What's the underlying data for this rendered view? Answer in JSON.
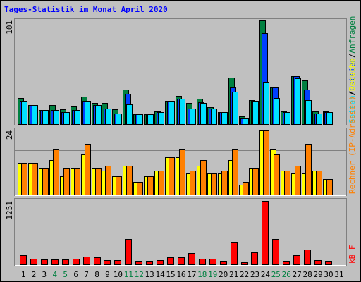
{
  "chart_data": {
    "title": "Tages-Statistik im Monat April 2020",
    "categories": [
      "1",
      "2",
      "3",
      "4",
      "5",
      "6",
      "7",
      "8",
      "9",
      "10",
      "11",
      "12",
      "13",
      "14",
      "15",
      "16",
      "17",
      "18",
      "19",
      "20",
      "21",
      "22",
      "23",
      "24",
      "25",
      "26",
      "27",
      "28",
      "29",
      "30",
      "31"
    ],
    "category_colors": [
      "#000000",
      "#000000",
      "#000000",
      "#008040",
      "#008040",
      "#000000",
      "#000000",
      "#000000",
      "#000000",
      "#000000",
      "#008040",
      "#008040",
      "#000000",
      "#000000",
      "#000000",
      "#000000",
      "#000000",
      "#008040",
      "#008040",
      "#000000",
      "#000000",
      "#000000",
      "#000000",
      "#000000",
      "#008040",
      "#008040",
      "#000000",
      "#000000",
      "#000000",
      "#000000",
      "#000000"
    ],
    "legend_separator": "/",
    "panels": [
      {
        "type": "bar",
        "ylim": [
          0,
          103
        ],
        "yticks": [
          101
        ],
        "series": [
          {
            "name": "Anfragen",
            "color": "#008040",
            "values": [
              26,
              19,
              14,
              19,
              15,
              18,
              27,
              21,
              21,
              15,
              34,
              10,
              10,
              13,
              23,
              28,
              21,
              25,
              17,
              12,
              46,
              8,
              24,
              101,
              36,
              13,
              47,
              43,
              13,
              13,
              null
            ]
          },
          {
            "name": "Dateien",
            "color": "#0040ff",
            "values": [
              23,
              19,
              14,
              14,
              12,
              14,
              23,
              19,
              16,
              11,
              30,
              10,
              10,
              12,
              23,
              25,
              16,
              22,
              16,
              12,
              36,
              6,
              23,
              89,
              36,
              12,
              47,
              34,
              11,
              12,
              null
            ]
          },
          {
            "name": "Seiten",
            "color": "#00e0ff",
            "values": [
              23,
              19,
              14,
              14,
              12,
              14,
              23,
              19,
              16,
              11,
              20,
              10,
              10,
              12,
              23,
              25,
              16,
              21,
              16,
              12,
              32,
              6,
              23,
              41,
              26,
              12,
              45,
              24,
              11,
              12,
              null
            ]
          }
        ]
      },
      {
        "type": "bar",
        "ylim": [
          0,
          25
        ],
        "yticks": [
          24
        ],
        "series": [
          {
            "name": "Besuche",
            "color": "#ffff00",
            "values": [
              12,
              12,
              10,
              13,
              7,
              10,
              15,
              10,
              9,
              7,
              11,
              5,
              7,
              9,
              14,
              14,
              8,
              11,
              8,
              8,
              13,
              4,
              10,
              24,
              17,
              9,
              8,
              8,
              9,
              6,
              null
            ]
          },
          {
            "name": "Rechner (IP-Adressen)",
            "color": "#ff8000",
            "values": [
              12,
              12,
              10,
              17,
              10,
              10,
              19,
              10,
              11,
              7,
              11,
              5,
              7,
              9,
              14,
              17,
              9,
              13,
              8,
              9,
              17,
              5,
              10,
              24,
              15,
              9,
              11,
              19,
              9,
              6,
              null
            ]
          }
        ]
      },
      {
        "type": "bar",
        "ylim": [
          0,
          1307
        ],
        "yticks": [
          1251
        ],
        "series": [
          {
            "name": "kB F",
            "color": "#ff0000",
            "values": [
              195,
              125,
              111,
              111,
              111,
              125,
              167,
              153,
              97,
              97,
              514,
              83,
              83,
              97,
              153,
              153,
              236,
              125,
              125,
              83,
              458,
              56,
              250,
              1251,
              514,
              83,
              195,
              306,
              97,
              83,
              null
            ]
          }
        ]
      }
    ]
  }
}
